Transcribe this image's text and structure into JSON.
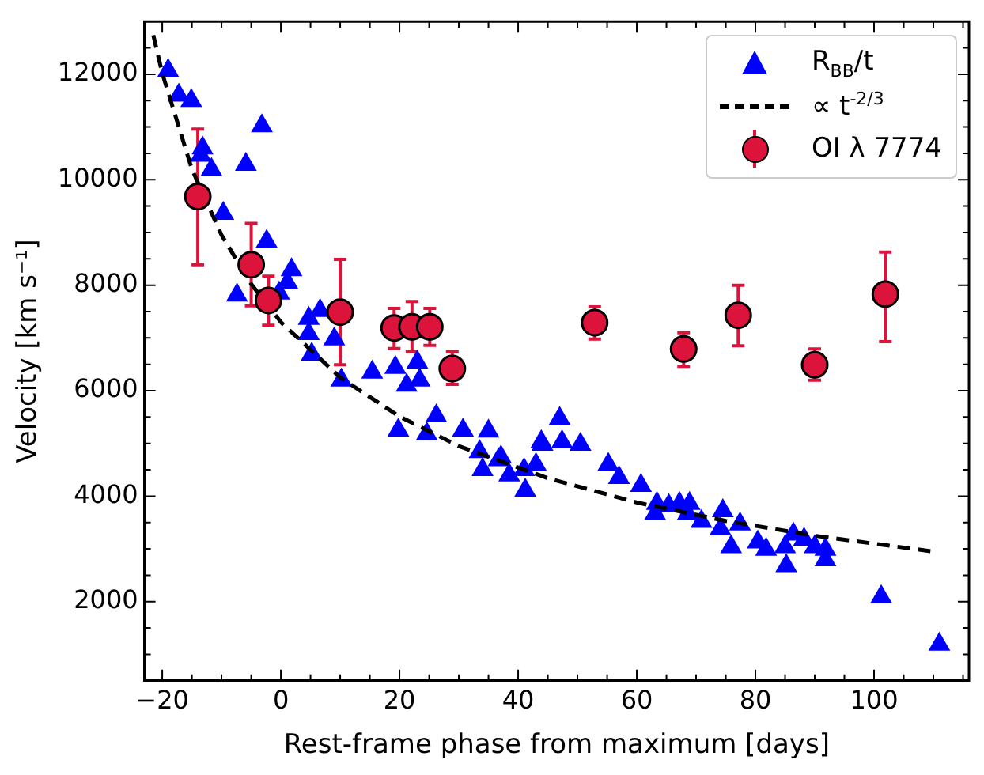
{
  "chart_data": {
    "type": "scatter",
    "xlabel": "Rest-frame phase from maximum [days]",
    "ylabel": "Velocity [km s⁻¹]",
    "xlim": [
      -23,
      116
    ],
    "ylim": [
      500,
      13000
    ],
    "xticks": [
      {
        "value": -20,
        "label": "−20"
      },
      {
        "value": -15,
        "label": null
      },
      {
        "value": -10,
        "label": null
      },
      {
        "value": -5,
        "label": null
      },
      0,
      {
        "value": 5,
        "label": null
      },
      {
        "value": 10,
        "label": null
      },
      {
        "value": 15,
        "label": null
      },
      20,
      {
        "value": 25,
        "label": null
      },
      {
        "value": 30,
        "label": null
      },
      {
        "value": 35,
        "label": null
      },
      40,
      {
        "value": 45,
        "label": null
      },
      {
        "value": 50,
        "label": null
      },
      {
        "value": 55,
        "label": null
      },
      60,
      {
        "value": 65,
        "label": null
      },
      {
        "value": 70,
        "label": null
      },
      {
        "value": 75,
        "label": null
      },
      80,
      {
        "value": 85,
        "label": null
      },
      {
        "value": 90,
        "label": null
      },
      {
        "value": 95,
        "label": null
      },
      100,
      {
        "value": 105,
        "label": null
      },
      {
        "value": 110,
        "label": null
      },
      {
        "value": 115,
        "label": null
      }
    ],
    "yticks": [
      {
        "value": 1000,
        "label": null
      },
      {
        "value": 1500,
        "label": null
      },
      2000,
      {
        "value": 2500,
        "label": null
      },
      {
        "value": 3000,
        "label": null
      },
      {
        "value": 3500,
        "label": null
      },
      4000,
      {
        "value": 4500,
        "label": null
      },
      {
        "value": 5000,
        "label": null
      },
      {
        "value": 5500,
        "label": null
      },
      6000,
      {
        "value": 6500,
        "label": null
      },
      {
        "value": 7000,
        "label": null
      },
      {
        "value": 7500,
        "label": null
      },
      8000,
      {
        "value": 8500,
        "label": null
      },
      {
        "value": 9000,
        "label": null
      },
      {
        "value": 9500,
        "label": null
      },
      10000,
      {
        "value": 10500,
        "label": null
      },
      {
        "value": 11000,
        "label": null
      },
      {
        "value": 11500,
        "label": null
      },
      12000,
      {
        "value": 12500,
        "label": null
      }
    ],
    "grid": false,
    "legend": "top right",
    "series": [
      {
        "name": "R$_{BB}$/t",
        "marker": "triangle",
        "color": "#0000ff",
        "x": [
          -19,
          -17.2,
          -15.1,
          -13.2,
          -13.5,
          -11.7,
          -3.2,
          -5.9,
          -9.7,
          -2.4,
          -7.4,
          1.8,
          1.1,
          -0.3,
          4.7,
          6.6,
          4.7,
          5.2,
          9.0,
          10.2,
          15.4,
          19.3,
          23,
          21.2,
          23.4,
          19.8,
          26.2,
          24.6,
          30.7,
          35,
          33.5,
          34,
          36.7,
          38.5,
          41,
          41.2,
          43,
          43.9,
          37.1,
          44.1,
          47,
          47.4,
          50.5,
          55.2,
          57,
          60.7,
          63.4,
          63.1,
          65.4,
          67.2,
          68.9,
          68.6,
          70.9,
          74.5,
          74.1,
          75.9,
          77.4,
          80.4,
          81.8,
          85,
          85.2,
          86.4,
          88.2,
          90,
          91.8,
          91.8,
          101.2,
          111
        ],
        "values": [
          12070,
          11600,
          11500,
          10600,
          10460,
          10190,
          11020,
          10290,
          9360,
          8830,
          7810,
          8290,
          8050,
          7850,
          7370,
          7520,
          7080,
          6690,
          6980,
          6200,
          6350,
          6440,
          6540,
          6100,
          6200,
          5250,
          5520,
          5180,
          5250,
          5230,
          4840,
          4500,
          4690,
          4400,
          4500,
          4110,
          4600,
          5030,
          4740,
          4980,
          5470,
          5030,
          4980,
          4600,
          4350,
          4200,
          3860,
          3670,
          3820,
          3860,
          3860,
          3670,
          3520,
          3720,
          3380,
          3040,
          3470,
          3130,
          2990,
          3040,
          2680,
          3280,
          3180,
          3040,
          2990,
          2790,
          2090,
          1190
        ]
      },
      {
        "name": "∝ t$^{-2/3}$",
        "type": "line",
        "marker": "none",
        "line_style": "dashed",
        "color": "#000000",
        "x": [
          -21.5,
          -20,
          -15,
          -10,
          -5,
          0,
          10,
          20,
          30,
          45,
          60,
          75,
          90,
          110
        ],
        "values": [
          12740,
          12020,
          10200,
          8950,
          8020,
          7300,
          6250,
          5510,
          4950,
          4340,
          3880,
          3530,
          3250,
          2950
        ]
      },
      {
        "name": "OI λ 7774",
        "marker": "circle",
        "color": "#dc143c",
        "x": [
          -14,
          -5,
          -2.1,
          10,
          19.1,
          22.1,
          25.1,
          28.9,
          52.9,
          67.9,
          77.1,
          90,
          101.9
        ],
        "values": [
          9680,
          8390,
          7710,
          7490,
          7190,
          7210,
          7210,
          6420,
          7290,
          6790,
          7430,
          6490,
          7830
        ],
        "errors": [
          [
            8390,
            10960
          ],
          [
            7610,
            9170
          ],
          [
            7240,
            8170
          ],
          [
            6490,
            8490
          ],
          [
            6800,
            7560
          ],
          [
            6740,
            7690
          ],
          [
            6860,
            7560
          ],
          [
            6120,
            6740
          ],
          [
            6980,
            7590
          ],
          [
            6460,
            7100
          ],
          [
            6850,
            8000
          ],
          [
            6200,
            6790
          ],
          [
            6930,
            8630
          ]
        ]
      }
    ]
  }
}
